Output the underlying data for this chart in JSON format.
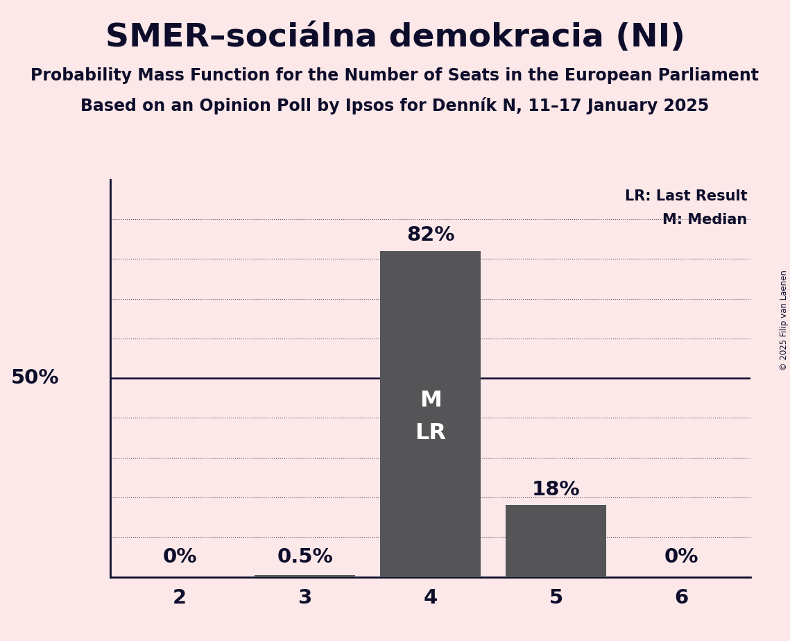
{
  "title": "SMER–sociálna demokracia (NI)",
  "subtitle1": "Probability Mass Function for the Number of Seats in the European Parliament",
  "subtitle2": "Based on an Opinion Poll by Ipsos for Denník N, 11–17 January 2025",
  "copyright": "© 2025 Filip van Laenen",
  "categories": [
    2,
    3,
    4,
    5,
    6
  ],
  "values": [
    0.0,
    0.5,
    82.0,
    18.0,
    0.0
  ],
  "bar_color": "#555558",
  "bg_color": "#fce8e8",
  "text_color": "#0d0d2b",
  "bar_labels": [
    "0%",
    "0.5%",
    "82%",
    "18%",
    "0%"
  ],
  "median_seat": 4,
  "lr_seat": 4,
  "fifty_pct_line": 50,
  "ylim": [
    0,
    100
  ],
  "legend_lr": "LR: Last Result",
  "legend_m": "M: Median",
  "grid_lines": [
    10,
    20,
    30,
    40,
    60,
    70,
    80,
    90
  ],
  "title_fontsize": 34,
  "subtitle_fontsize": 17,
  "label_fontsize": 21,
  "tick_fontsize": 21,
  "inside_label_fontsize": 23,
  "legend_fontsize": 15
}
